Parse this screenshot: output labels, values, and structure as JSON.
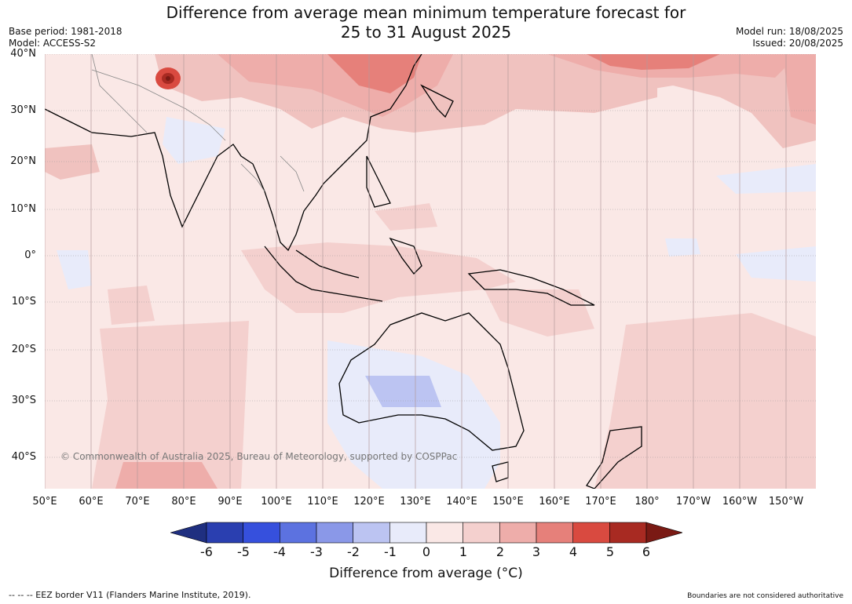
{
  "header": {
    "title_line1": "Difference from average mean minimum temperature forecast for",
    "title_line2": "25 to 31 August 2025",
    "base_period": "Base period: 1981-2018",
    "model": "Model: ACCESS-S2",
    "model_run": "Model run: 18/08/2025",
    "issued": "Issued: 20/08/2025"
  },
  "map": {
    "lat_labels": [
      "40°N",
      "30°N",
      "20°N",
      "10°N",
      "0°",
      "10°S",
      "20°S",
      "30°S",
      "40°S"
    ],
    "lon_labels": [
      "50°E",
      "60°E",
      "70°E",
      "80°E",
      "90°E",
      "100°E",
      "110°E",
      "120°E",
      "130°E",
      "140°E",
      "150°E",
      "160°E",
      "170°E",
      "180°",
      "170°W",
      "160°W",
      "150°W"
    ],
    "copyright": "© Commonwealth of Australia 2025, Bureau of Meteorology, supported by COSPPac",
    "background_color": "#fae8e6"
  },
  "colorbar": {
    "ticks": [
      "-6",
      "-5",
      "-4",
      "-3",
      "-2",
      "-1",
      "0",
      "1",
      "2",
      "3",
      "4",
      "5",
      "6"
    ],
    "colors": [
      "#1f2f80",
      "#2a3fb0",
      "#3650dd",
      "#5c72e0",
      "#8a98e8",
      "#bcc4f2",
      "#e8ebfa",
      "#fae8e6",
      "#f4d0ce",
      "#eeadaa",
      "#e6807a",
      "#d94a40",
      "#a82a22",
      "#7a1a14"
    ],
    "label": "Difference from average (°C)"
  },
  "footer": {
    "eez_note": "--  --  -- EEZ border V11 (Flanders Marine Institute, 2019).",
    "boundaries_note": "Boundaries are not considered authoritative"
  }
}
